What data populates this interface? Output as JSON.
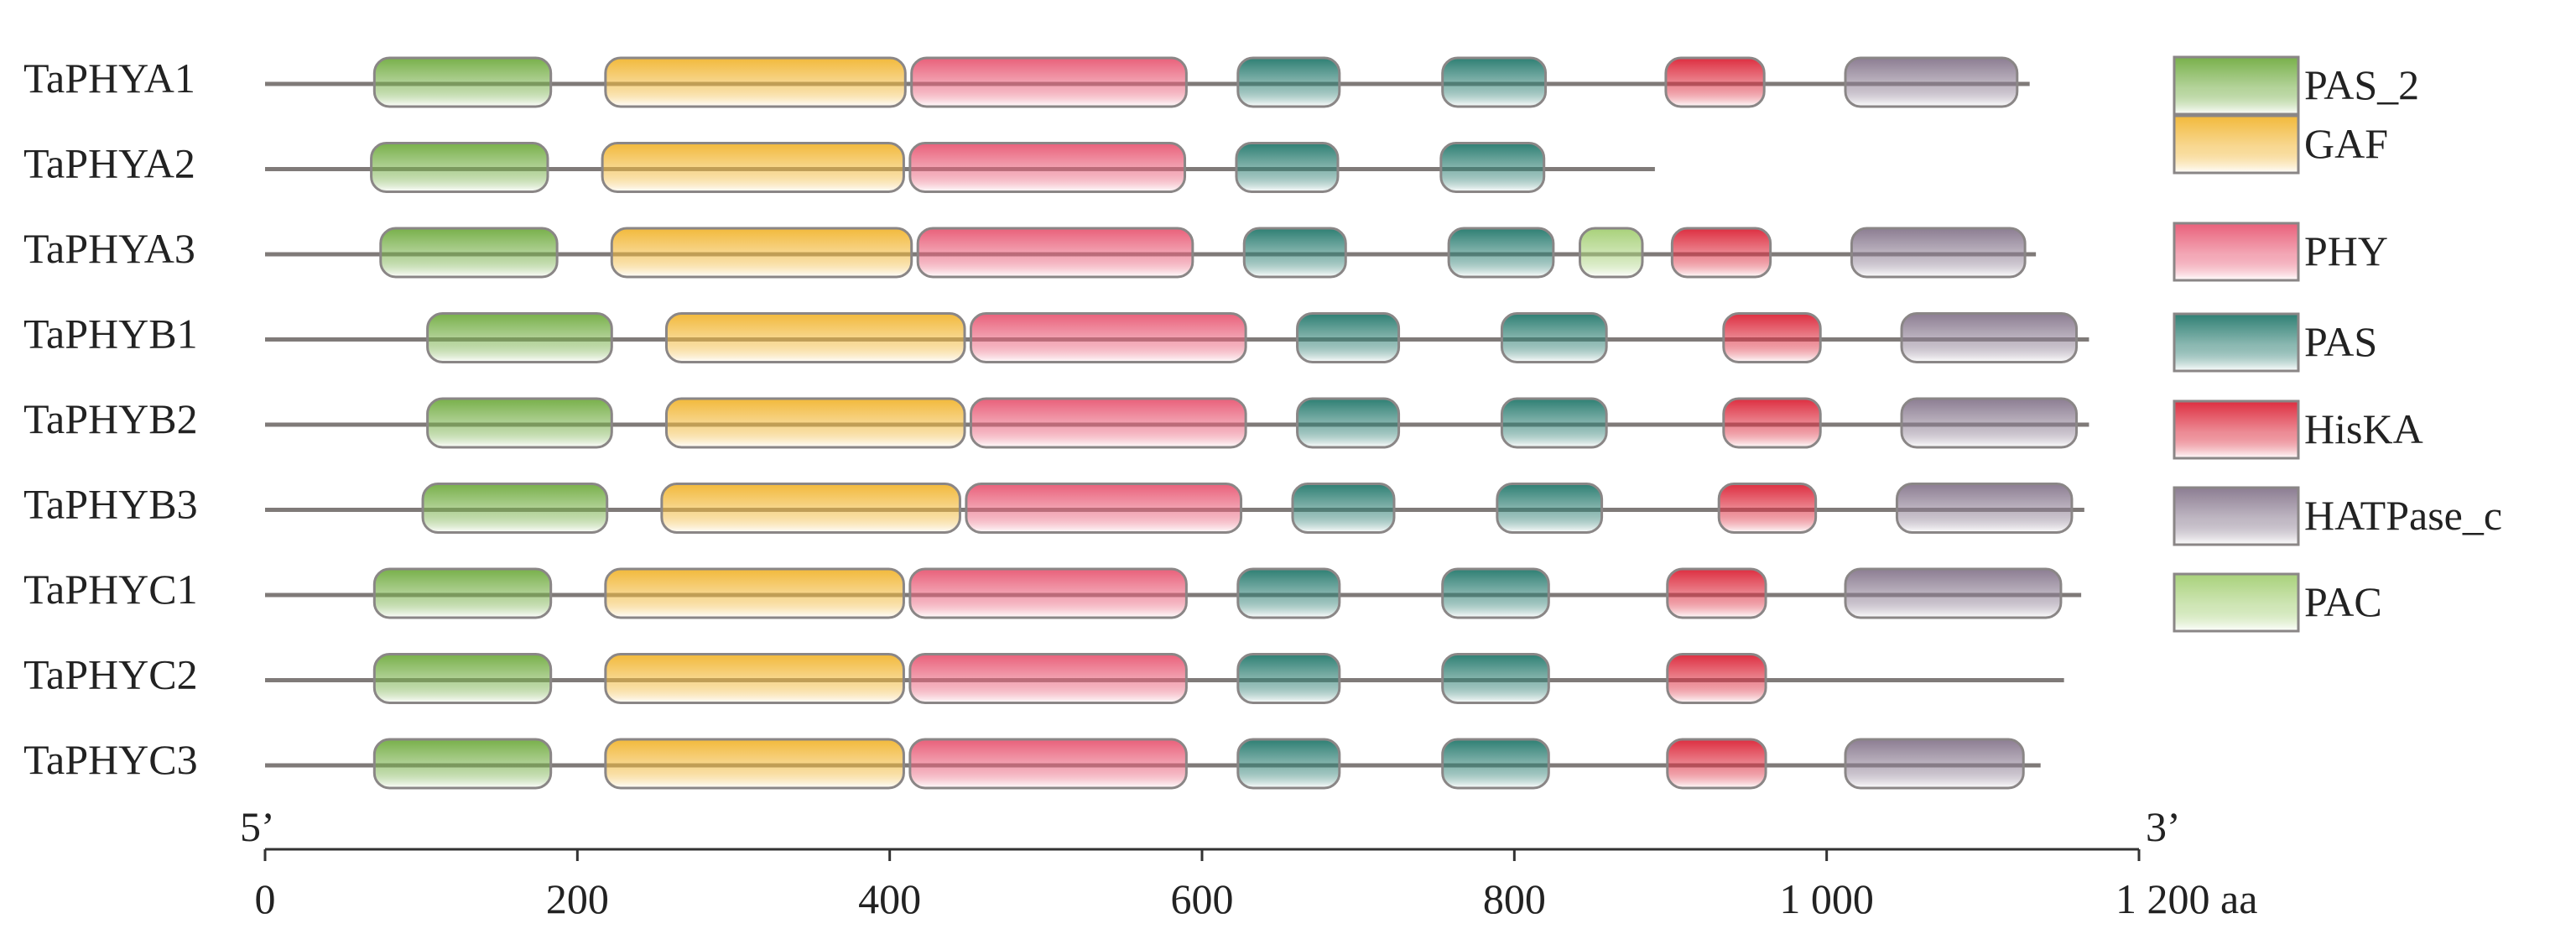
{
  "diagram": {
    "axis": {
      "min": 0,
      "max": 1200,
      "ticks": [
        0,
        200,
        400,
        600,
        800,
        1000,
        1200
      ],
      "tick_labels": [
        "0",
        "200",
        "400",
        "600",
        "800",
        "1 000",
        "1 200 aa"
      ],
      "start_label": "5’",
      "end_label": "3’"
    },
    "domain_colors": {
      "PAS_2": "#78b04a",
      "GAF": "#f2b93b",
      "PHY": "#e9607a",
      "PAS": "#2e7f73",
      "HisKA": "#dd2e40",
      "HATPase_c": "#8c7d92",
      "PAC": "#a8d17a"
    },
    "legend": [
      "PAS_2",
      "GAF",
      "PHY",
      "PAS",
      "HisKA",
      "HATPase_c",
      "PAC"
    ],
    "proteins": [
      {
        "name": "TaPHYA1",
        "line": [
          0,
          1130
        ],
        "domains": [
          {
            "type": "PAS_2",
            "start": 70,
            "end": 183
          },
          {
            "type": "GAF",
            "start": 218,
            "end": 410
          },
          {
            "type": "PHY",
            "start": 414,
            "end": 590
          },
          {
            "type": "PAS",
            "start": 623,
            "end": 688
          },
          {
            "type": "PAS",
            "start": 754,
            "end": 820
          },
          {
            "type": "HisKA",
            "start": 897,
            "end": 960
          },
          {
            "type": "HATPase_c",
            "start": 1012,
            "end": 1122
          }
        ]
      },
      {
        "name": "TaPHYA2",
        "line": [
          0,
          890
        ],
        "domains": [
          {
            "type": "PAS_2",
            "start": 68,
            "end": 181
          },
          {
            "type": "GAF",
            "start": 216,
            "end": 409
          },
          {
            "type": "PHY",
            "start": 413,
            "end": 589
          },
          {
            "type": "PAS",
            "start": 622,
            "end": 687
          },
          {
            "type": "PAS",
            "start": 753,
            "end": 819
          }
        ]
      },
      {
        "name": "TaPHYA3",
        "line": [
          0,
          1134
        ],
        "domains": [
          {
            "type": "PAS_2",
            "start": 74,
            "end": 187
          },
          {
            "type": "GAF",
            "start": 222,
            "end": 414
          },
          {
            "type": "PHY",
            "start": 418,
            "end": 594
          },
          {
            "type": "PAS",
            "start": 627,
            "end": 692
          },
          {
            "type": "PAS",
            "start": 758,
            "end": 825
          },
          {
            "type": "PAC",
            "start": 842,
            "end": 882
          },
          {
            "type": "HisKA",
            "start": 901,
            "end": 964
          },
          {
            "type": "HATPase_c",
            "start": 1016,
            "end": 1127
          }
        ]
      },
      {
        "name": "TaPHYB1",
        "line": [
          0,
          1168
        ],
        "domains": [
          {
            "type": "PAS_2",
            "start": 104,
            "end": 222
          },
          {
            "type": "GAF",
            "start": 257,
            "end": 448
          },
          {
            "type": "PHY",
            "start": 452,
            "end": 628
          },
          {
            "type": "PAS",
            "start": 661,
            "end": 726
          },
          {
            "type": "PAS",
            "start": 792,
            "end": 859
          },
          {
            "type": "HisKA",
            "start": 934,
            "end": 996
          },
          {
            "type": "HATPase_c",
            "start": 1048,
            "end": 1160
          }
        ]
      },
      {
        "name": "TaPHYB2",
        "line": [
          0,
          1168
        ],
        "domains": [
          {
            "type": "PAS_2",
            "start": 104,
            "end": 222
          },
          {
            "type": "GAF",
            "start": 257,
            "end": 448
          },
          {
            "type": "PHY",
            "start": 452,
            "end": 628
          },
          {
            "type": "PAS",
            "start": 661,
            "end": 726
          },
          {
            "type": "PAS",
            "start": 792,
            "end": 859
          },
          {
            "type": "HisKA",
            "start": 934,
            "end": 996
          },
          {
            "type": "HATPase_c",
            "start": 1048,
            "end": 1160
          }
        ]
      },
      {
        "name": "TaPHYB3",
        "line": [
          0,
          1165
        ],
        "domains": [
          {
            "type": "PAS_2",
            "start": 101,
            "end": 219
          },
          {
            "type": "GAF",
            "start": 254,
            "end": 445
          },
          {
            "type": "PHY",
            "start": 449,
            "end": 625
          },
          {
            "type": "PAS",
            "start": 658,
            "end": 723
          },
          {
            "type": "PAS",
            "start": 789,
            "end": 856
          },
          {
            "type": "HisKA",
            "start": 931,
            "end": 993
          },
          {
            "type": "HATPase_c",
            "start": 1045,
            "end": 1157
          }
        ]
      },
      {
        "name": "TaPHYC1",
        "line": [
          0,
          1163
        ],
        "domains": [
          {
            "type": "PAS_2",
            "start": 70,
            "end": 183
          },
          {
            "type": "GAF",
            "start": 218,
            "end": 409
          },
          {
            "type": "PHY",
            "start": 413,
            "end": 590
          },
          {
            "type": "PAS",
            "start": 623,
            "end": 688
          },
          {
            "type": "PAS",
            "start": 754,
            "end": 822
          },
          {
            "type": "HisKA",
            "start": 898,
            "end": 961
          },
          {
            "type": "HATPase_c",
            "start": 1012,
            "end": 1150
          }
        ]
      },
      {
        "name": "TaPHYC2",
        "line": [
          0,
          1152
        ],
        "domains": [
          {
            "type": "PAS_2",
            "start": 70,
            "end": 183
          },
          {
            "type": "GAF",
            "start": 218,
            "end": 409
          },
          {
            "type": "PHY",
            "start": 413,
            "end": 590
          },
          {
            "type": "PAS",
            "start": 623,
            "end": 688
          },
          {
            "type": "PAS",
            "start": 754,
            "end": 822
          },
          {
            "type": "HisKA",
            "start": 898,
            "end": 961
          }
        ]
      },
      {
        "name": "TaPHYC3",
        "line": [
          0,
          1137
        ],
        "domains": [
          {
            "type": "PAS_2",
            "start": 70,
            "end": 183
          },
          {
            "type": "GAF",
            "start": 218,
            "end": 409
          },
          {
            "type": "PHY",
            "start": 413,
            "end": 590
          },
          {
            "type": "PAS",
            "start": 623,
            "end": 688
          },
          {
            "type": "PAS",
            "start": 754,
            "end": 822
          },
          {
            "type": "HisKA",
            "start": 898,
            "end": 961
          },
          {
            "type": "HATPase_c",
            "start": 1012,
            "end": 1126
          }
        ]
      }
    ]
  }
}
